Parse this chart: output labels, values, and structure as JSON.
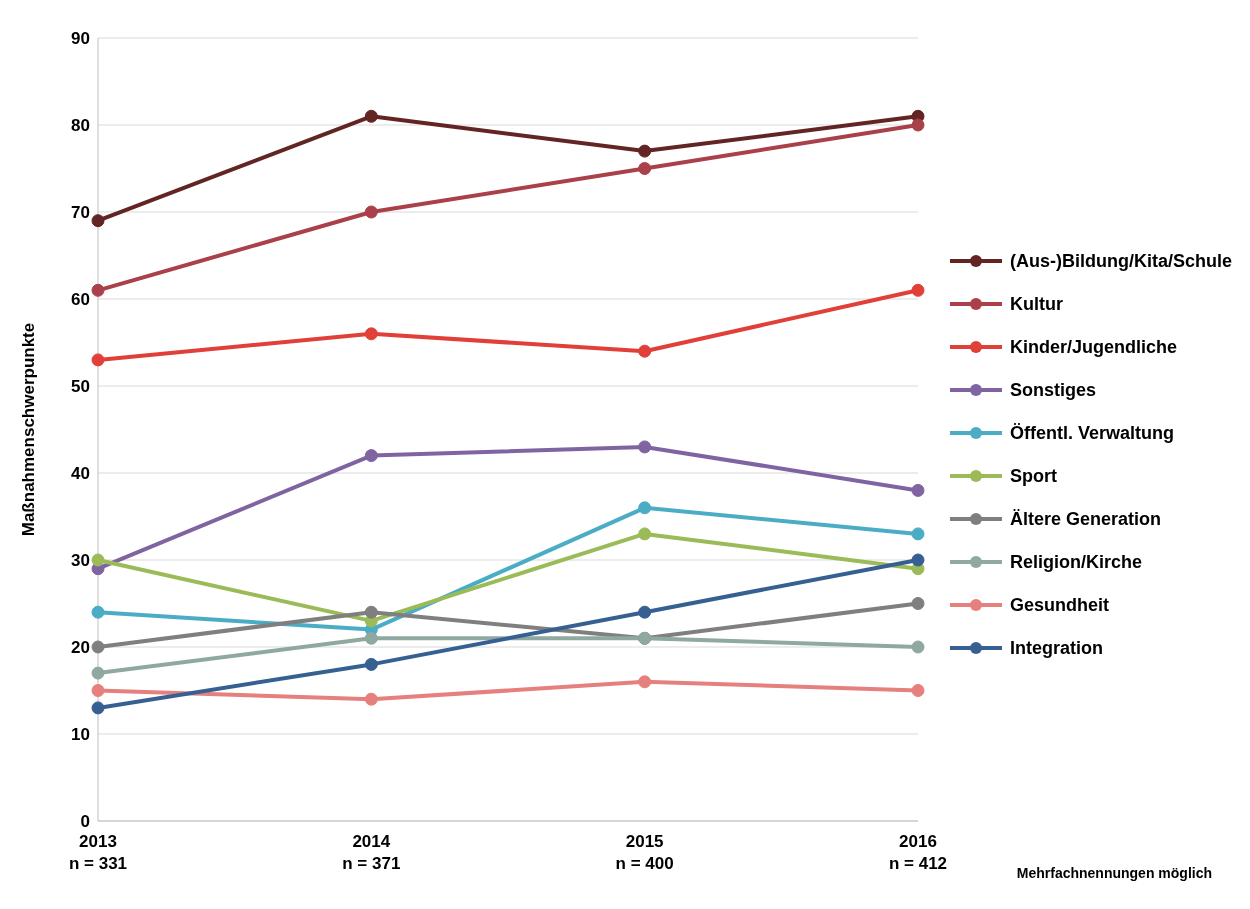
{
  "chart_data": {
    "type": "line",
    "ylabel": "Maßnahmenschwerpunkte",
    "categories": [
      "2013\nn = 331",
      "2014\nn = 371",
      "2015\nn = 400",
      "2016\nn = 412"
    ],
    "ylim": [
      0,
      90
    ],
    "yticks": [
      0,
      10,
      20,
      30,
      40,
      50,
      60,
      70,
      80,
      90
    ],
    "grid": "y",
    "legend": "right",
    "marker": "circle",
    "line_style": "solid",
    "annotations": [
      "Mehrfachnennungen möglich"
    ],
    "series": [
      {
        "name": "(Aus-)Bildung/Kita/Schule",
        "color": "#632523",
        "values": [
          69,
          81,
          77,
          81
        ]
      },
      {
        "name": "Kultur",
        "color": "#aa4049",
        "values": [
          61,
          70,
          75,
          80
        ]
      },
      {
        "name": "Kinder/Jugendliche",
        "color": "#e04038",
        "values": [
          53,
          56,
          54,
          61
        ]
      },
      {
        "name": "Sonstiges",
        "color": "#8064a2",
        "values": [
          29,
          42,
          43,
          38
        ]
      },
      {
        "name": "Öffentl. Verwaltung",
        "color": "#4bacc6",
        "values": [
          24,
          22,
          36,
          33
        ]
      },
      {
        "name": "Sport",
        "color": "#9bbb59",
        "values": [
          30,
          23,
          33,
          29
        ]
      },
      {
        "name": "Ältere Generation",
        "color": "#7f7f7f",
        "values": [
          20,
          24,
          21,
          25
        ]
      },
      {
        "name": "Religion/Kirche",
        "color": "#8fa8a0",
        "values": [
          17,
          21,
          21,
          20
        ]
      },
      {
        "name": "Gesundheit",
        "color": "#e6807e",
        "values": [
          15,
          14,
          16,
          15
        ]
      },
      {
        "name": "Integration",
        "color": "#376092",
        "values": [
          13,
          18,
          24,
          30
        ]
      }
    ]
  }
}
